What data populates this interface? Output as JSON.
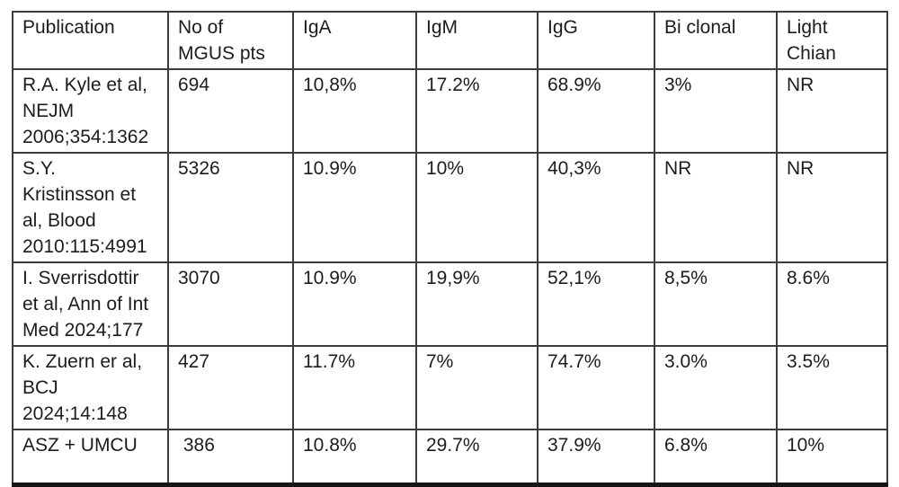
{
  "colors": {
    "background": "#ffffff",
    "grid_line": "#3c3c3c",
    "bottom_border": "#161616",
    "text": "#1c1c1c"
  },
  "chart_data": {
    "type": "table",
    "title": "",
    "columns": [
      "Publication",
      "No of\nMGUS pts",
      "IgA",
      "IgM",
      "IgG",
      "Bi clonal",
      "Light\nChian"
    ],
    "rows": [
      [
        "R.A. Kyle et al,\nNEJM\n2006;354:1362",
        "694",
        "10,8%",
        "17.2%",
        "68.9%",
        "3%",
        "NR"
      ],
      [
        "S.Y.\nKristinsson et\nal, Blood\n2010:115:4991",
        "5326",
        "10.9%",
        "10%",
        "40,3%",
        "NR",
        "NR"
      ],
      [
        "I. Sverrisdottir\net al, Ann of Int\nMed 2024;177",
        "3070",
        "10.9%",
        "19,9%",
        "52,1%",
        "8,5%",
        "8.6%"
      ],
      [
        "K. Zuern er al,\nBCJ\n2024;14:148",
        "427",
        "11.7%",
        "7%",
        "74.7%",
        "3.0%",
        "3.5%"
      ],
      [
        "ASZ + UMCU",
        " 386",
        "10.8%",
        "29.7%",
        "37.9%",
        "6.8%",
        "10%"
      ]
    ]
  }
}
